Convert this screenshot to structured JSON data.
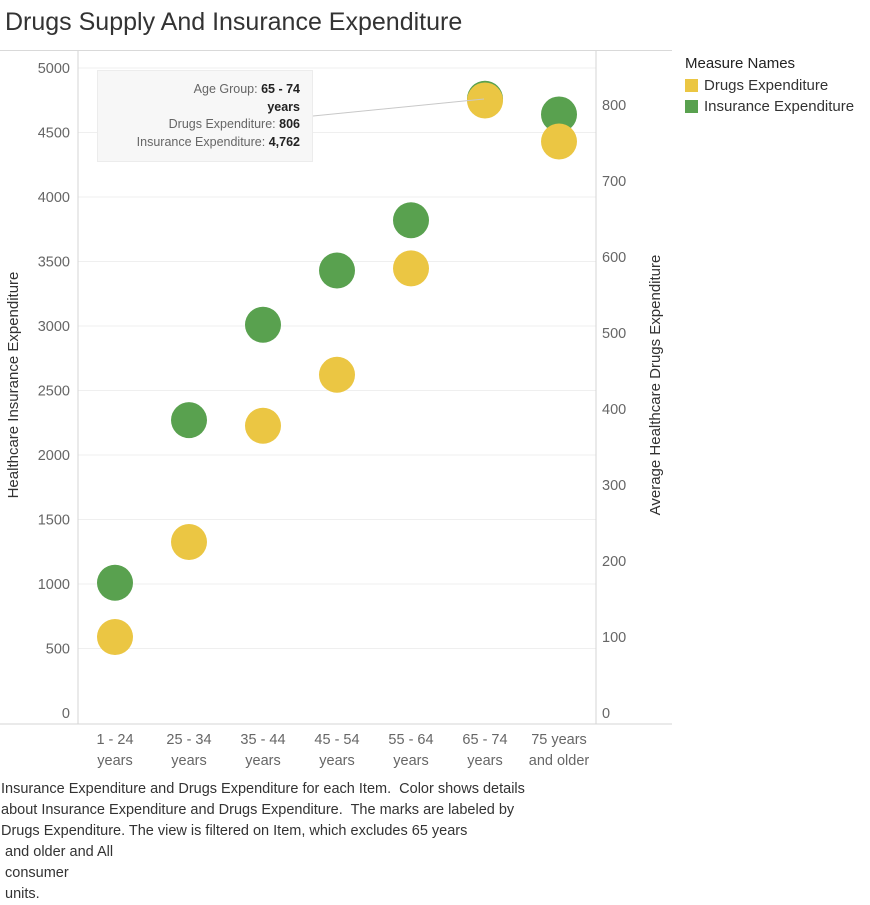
{
  "title": "Drugs Supply And Insurance Expenditure",
  "legend": {
    "title": "Measure Names",
    "items": [
      {
        "label": "Drugs Expenditure",
        "color": "#EBC643"
      },
      {
        "label": "Insurance Expenditure",
        "color": "#59A14F"
      }
    ]
  },
  "tooltip": {
    "age_label": "Age Group:",
    "age_value_line1": "65 - 74",
    "age_value_line2": "years",
    "drugs_label": "Drugs Expenditure:",
    "drugs_value": "806",
    "insurance_label": "Insurance Expenditure:",
    "insurance_value": "4,762"
  },
  "caption_lines": [
    "Insurance Expenditure and Drugs Expenditure for each Item.  Color shows details",
    "about Insurance Expenditure and Drugs Expenditure.  The marks are labeled by",
    "Drugs Expenditure. The view is filtered on Item, which excludes 65 years",
    " and older and All",
    " consumer",
    " units."
  ],
  "chart_data": {
    "type": "scatter",
    "title": "Drugs Supply And Insurance Expenditure",
    "categories": [
      [
        "1 - 24",
        "years"
      ],
      [
        "25 - 34",
        "years"
      ],
      [
        "35 - 44",
        "years"
      ],
      [
        "45 - 54",
        "years"
      ],
      [
        "55 - 64",
        "years"
      ],
      [
        "65 - 74",
        "years"
      ],
      [
        "75 years",
        "and older"
      ]
    ],
    "y_left": {
      "label": "Healthcare Insurance Expenditure",
      "min": 0,
      "max": 5100,
      "ticks": [
        0,
        500,
        1000,
        1500,
        2000,
        2500,
        3000,
        3500,
        4000,
        4500,
        5000
      ]
    },
    "y_right": {
      "label": "Average Healthcare Drugs Expenditure",
      "min": 0,
      "max": 850,
      "ticks": [
        0,
        100,
        200,
        300,
        400,
        500,
        600,
        700,
        800
      ]
    },
    "grid": true,
    "legend_position": "top-right",
    "series": [
      {
        "name": "Insurance Expenditure",
        "axis": "left",
        "color": "#59A14F",
        "values": [
          1010,
          2270,
          3010,
          3430,
          3820,
          4762,
          4640
        ]
      },
      {
        "name": "Drugs Expenditure",
        "axis": "right",
        "color": "#EBC643",
        "values": [
          100,
          225,
          378,
          445,
          585,
          806,
          752
        ]
      }
    ]
  }
}
